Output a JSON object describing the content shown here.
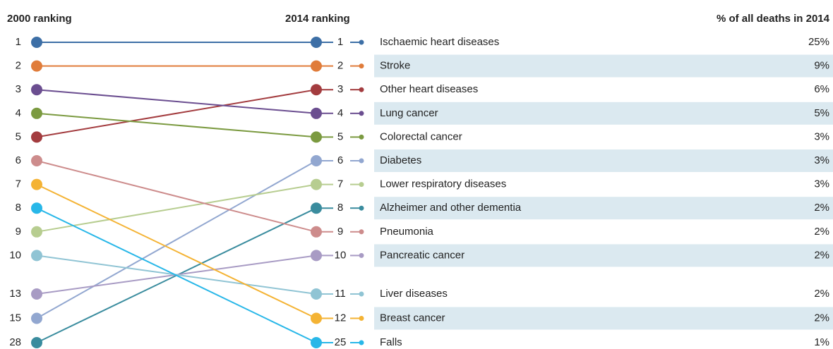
{
  "chart_data": {
    "type": "slope",
    "left_title": "2000 ranking",
    "right_title": "2014 ranking",
    "value_title": "% of all deaths in 2014",
    "categories": [
      "Ischaemic heart diseases",
      "Stroke",
      "Other heart diseases",
      "Lung cancer",
      "Colorectal cancer",
      "Diabetes",
      "Lower respiratory diseases",
      "Alzheimer and other dementia",
      "Pneumonia",
      "Pancreatic cancer",
      "Liver diseases",
      "Breast cancer",
      "Falls"
    ],
    "rank_2000": [
      1,
      2,
      5,
      3,
      4,
      15,
      9,
      28,
      6,
      13,
      10,
      7,
      8
    ],
    "rank_2014": [
      1,
      2,
      3,
      4,
      5,
      6,
      7,
      8,
      9,
      10,
      11,
      12,
      25
    ],
    "values": [
      25,
      9,
      6,
      5,
      3,
      3,
      3,
      2,
      2,
      2,
      2,
      2,
      1
    ],
    "value_labels": [
      "25%",
      "9%",
      "6%",
      "5%",
      "3%",
      "3%",
      "3%",
      "2%",
      "2%",
      "2%",
      "2%",
      "2%",
      "1%"
    ],
    "colors": [
      "#3d6fa6",
      "#e07c3a",
      "#a33c3f",
      "#6b4e90",
      "#7b9a40",
      "#92a7d0",
      "#b7cd90",
      "#3a8c9e",
      "#cd8c8c",
      "#a89bc4",
      "#90c4d4",
      "#f4b334",
      "#28b7e8"
    ]
  }
}
